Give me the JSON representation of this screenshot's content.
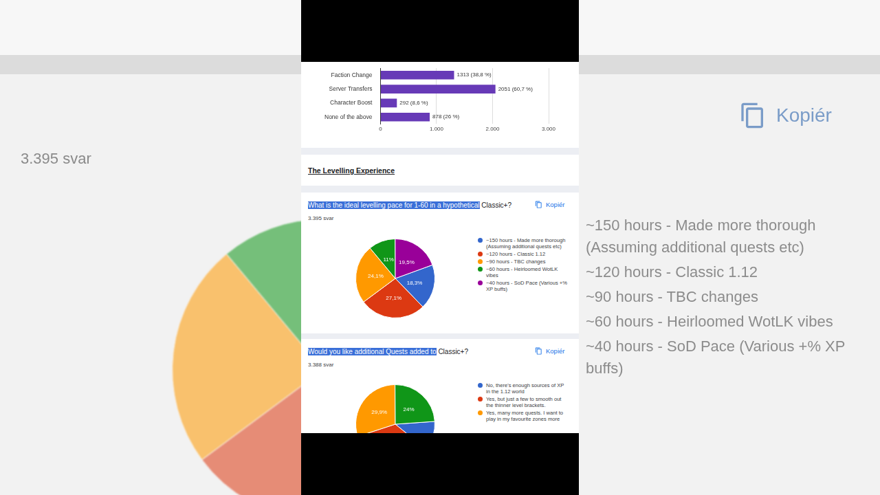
{
  "page": {
    "section_title": "The Levelling Experience",
    "copy_label": "Kopiér"
  },
  "chart_data": [
    {
      "type": "bar",
      "orientation": "horizontal",
      "categories": [
        "Faction Change",
        "Server Transfers",
        "Character Boost",
        "None of the above"
      ],
      "values": [
        1313,
        2051,
        292,
        878
      ],
      "value_labels": [
        "1313 (38,8 %)",
        "2051 (60,7 %)",
        "292 (8,6 %)",
        "878 (26 %)"
      ],
      "data_labels": true,
      "color": "#673ab7",
      "xlim": [
        0,
        3000
      ],
      "xticks": [
        0,
        {
          "value": 1000,
          "label": "1.000"
        },
        {
          "value": 2000,
          "label": "2.000"
        },
        {
          "value": 3000,
          "label": "3.000"
        }
      ],
      "grid": true
    },
    {
      "type": "pie",
      "title": "What is the ideal levelling pace for 1-60 in a hypothetical Classic+?",
      "subtitle": "3.395 svar",
      "categories": [
        "~150 hours - Made more thorough (Assuming additional quests etc)",
        "~120 hours - Classic 1.12",
        "~90 hours - TBC changes",
        "~60 hours - Heirloomed WotLK vibes",
        "~40 hours - SoD Pace (Various +% XP buffs)"
      ],
      "values": [
        18.3,
        27.1,
        24.1,
        11,
        19.5
      ],
      "value_labels": [
        "18,3%",
        "27,1%",
        "24,1%",
        "11%",
        "19,5%"
      ],
      "data_labels": true,
      "colors": [
        "#3366cc",
        "#dc3912",
        "#ff9900",
        "#109618",
        "#990099"
      ],
      "legend": "right"
    },
    {
      "type": "pie",
      "title": "Would you like additional Quests added to Classic+?",
      "subtitle": "3.388 svar",
      "categories": [
        "No, there's enough sources of XP in the 1.12 world",
        "Yes, but just a few to smooth out the thinner level brackets.",
        "Yes, many more quests. I want to play in my favourite zones more",
        null
      ],
      "values": [
        12,
        34.1,
        29.9,
        24
      ],
      "value_labels": [
        null,
        null,
        "29,9%",
        "24%"
      ],
      "data_labels": true,
      "colors": [
        "#3366cc",
        "#dc3912",
        "#ff9900",
        "#109618"
      ],
      "legend": "right"
    }
  ]
}
